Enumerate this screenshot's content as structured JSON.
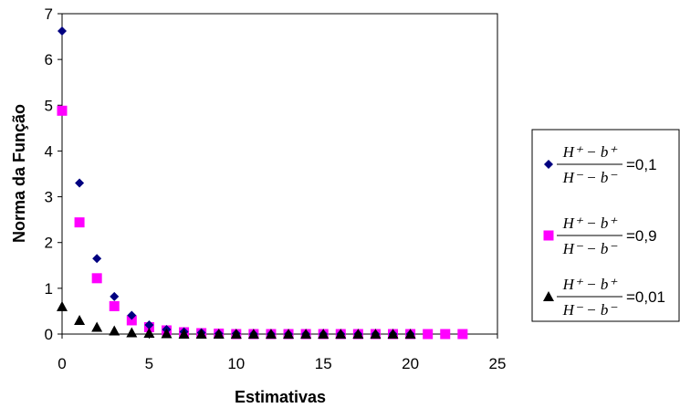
{
  "chart_data": {
    "type": "scatter",
    "xlabel": "Estimativas",
    "ylabel": "Norma da Função",
    "xlim": [
      0,
      25
    ],
    "ylim": [
      0,
      7
    ],
    "x_ticks": [
      "0",
      "5",
      "10",
      "15",
      "20",
      "25"
    ],
    "y_ticks": [
      "0",
      "1",
      "2",
      "3",
      "4",
      "5",
      "6",
      "7"
    ],
    "grid": false,
    "legend_position": "right",
    "series": [
      {
        "marker": "diamond",
        "color": "#000080",
        "legend": {
          "numerator": "H⁺ − b⁺",
          "denominator": "H⁻ − b⁻",
          "value": "=0,1"
        },
        "x": [
          0,
          1,
          2,
          3,
          4,
          5,
          6,
          7,
          8,
          9,
          10,
          11,
          12,
          13,
          14,
          15,
          16,
          17,
          18,
          19,
          20
        ],
        "y": [
          6.62,
          3.3,
          1.65,
          0.82,
          0.41,
          0.2,
          0.1,
          0.05,
          0.03,
          0.01,
          0.01,
          0,
          0,
          0,
          0,
          0,
          0,
          0,
          0,
          0,
          0
        ]
      },
      {
        "marker": "square",
        "color": "#ff00ff",
        "legend": {
          "numerator": "H⁺ − b⁺",
          "denominator": "H⁻ − b⁻",
          "value": "=0,9"
        },
        "x": [
          0,
          1,
          2,
          3,
          4,
          5,
          6,
          7,
          8,
          9,
          10,
          11,
          12,
          13,
          14,
          15,
          16,
          17,
          18,
          19,
          20,
          21,
          22,
          23
        ],
        "y": [
          4.88,
          2.44,
          1.22,
          0.61,
          0.3,
          0.15,
          0.08,
          0.04,
          0.02,
          0.01,
          0,
          0,
          0,
          0,
          0,
          0,
          0,
          0,
          0,
          0,
          0,
          0,
          0,
          0
        ]
      },
      {
        "marker": "triangle",
        "color": "#000000",
        "legend": {
          "numerator": "H⁺ − b⁺",
          "denominator": "H⁻ − b⁻",
          "value": "=0,01"
        },
        "x": [
          0,
          1,
          2,
          3,
          4,
          5,
          6,
          7,
          8,
          9,
          10,
          11,
          12,
          13,
          14,
          15,
          16,
          17,
          18,
          19,
          20
        ],
        "y": [
          0.6,
          0.3,
          0.15,
          0.07,
          0.03,
          0.02,
          0.01,
          0,
          0,
          0,
          0,
          0,
          0,
          0,
          0,
          0,
          0,
          0,
          0,
          0,
          0
        ]
      }
    ]
  }
}
